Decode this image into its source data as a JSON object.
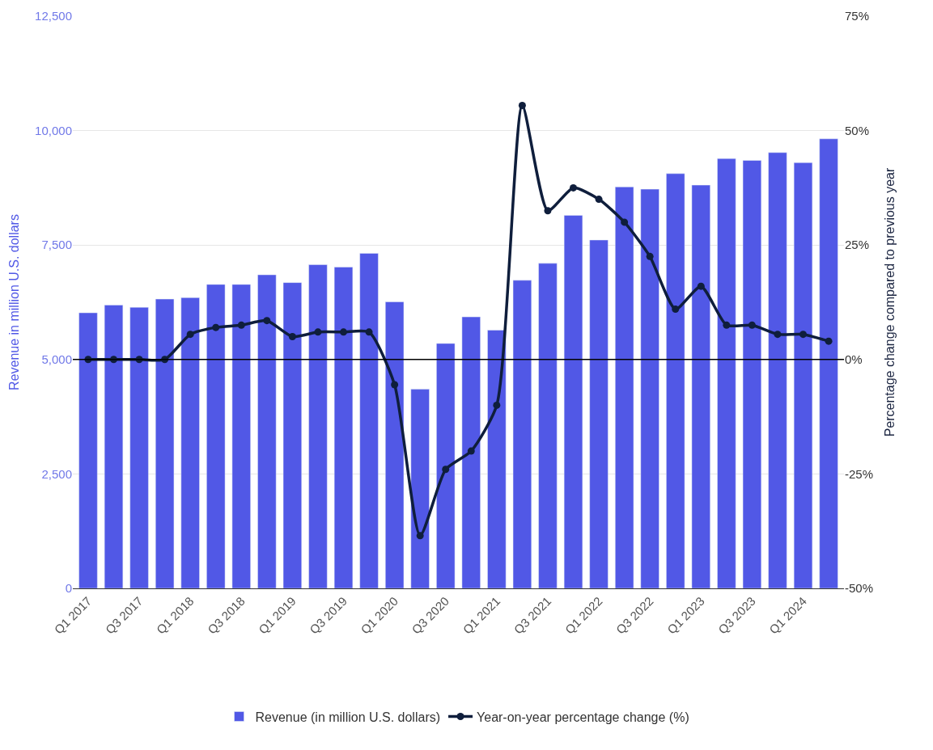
{
  "chart_data": {
    "type": "bar",
    "categories": [
      "Q1 2017",
      null,
      "Q3 2017",
      null,
      "Q1 2018",
      null,
      "Q3 2018",
      null,
      "Q1 2019",
      null,
      "Q3 2019",
      null,
      "Q1 2020",
      null,
      "Q3 2020",
      null,
      "Q1 2021",
      null,
      "Q3 2021",
      null,
      "Q1 2022",
      null,
      "Q3 2022",
      null,
      "Q1 2023",
      null,
      "Q3 2023",
      null,
      "Q1 2024",
      null
    ],
    "ylabel": "Revenue in million U.S. dollars",
    "y2label": "Percentage change compared to previous year",
    "series": [
      {
        "name": "Revenue (in million U.S. dollars)",
        "color": "#5158e6",
        "values": [
          6020,
          6190,
          6140,
          6320,
          6350,
          6640,
          6640,
          6850,
          6680,
          7070,
          7020,
          7320,
          6260,
          4350,
          5350,
          5930,
          5640,
          6730,
          7100,
          8150,
          7610,
          8770,
          8720,
          9060,
          8810,
          9390,
          9350,
          9520,
          9300,
          9820
        ]
      },
      {
        "name": "Year-on-year percentage change (%)",
        "type": "line",
        "axis": "y2",
        "color": "#0f1e3c",
        "marker": "circle",
        "values": [
          0,
          0,
          0,
          0,
          5.5,
          7,
          7.5,
          8.5,
          5,
          6,
          6,
          6,
          -5.5,
          -38.5,
          -24,
          -20,
          -10,
          55.5,
          32.5,
          37.5,
          35,
          30,
          22.5,
          11,
          16,
          7.5,
          7.5,
          5.5,
          5.5,
          4
        ]
      }
    ],
    "ylim": [
      0,
      12500
    ],
    "yticks": [
      0,
      {
        "value": 2500,
        "label": "2,500"
      },
      {
        "value": 5000,
        "label": "5,000"
      },
      {
        "value": 7500,
        "label": "7,500"
      },
      {
        "value": 10000,
        "label": "10,000"
      },
      {
        "value": 12500,
        "label": "12,500"
      }
    ],
    "y2lim": [
      -50,
      75
    ],
    "y2ticks": [
      {
        "value": -50,
        "label": "-50%"
      },
      {
        "value": -25,
        "label": "-25%"
      },
      {
        "value": 0,
        "label": "0%"
      },
      {
        "value": 25,
        "label": "25%"
      },
      {
        "value": 50,
        "label": "50%"
      },
      {
        "value": 75,
        "label": "75%"
      }
    ],
    "ref_lines": [
      {
        "axis": "y2",
        "value": 0,
        "color": "#000000"
      }
    ],
    "grid": "y",
    "legend": "bottom"
  }
}
